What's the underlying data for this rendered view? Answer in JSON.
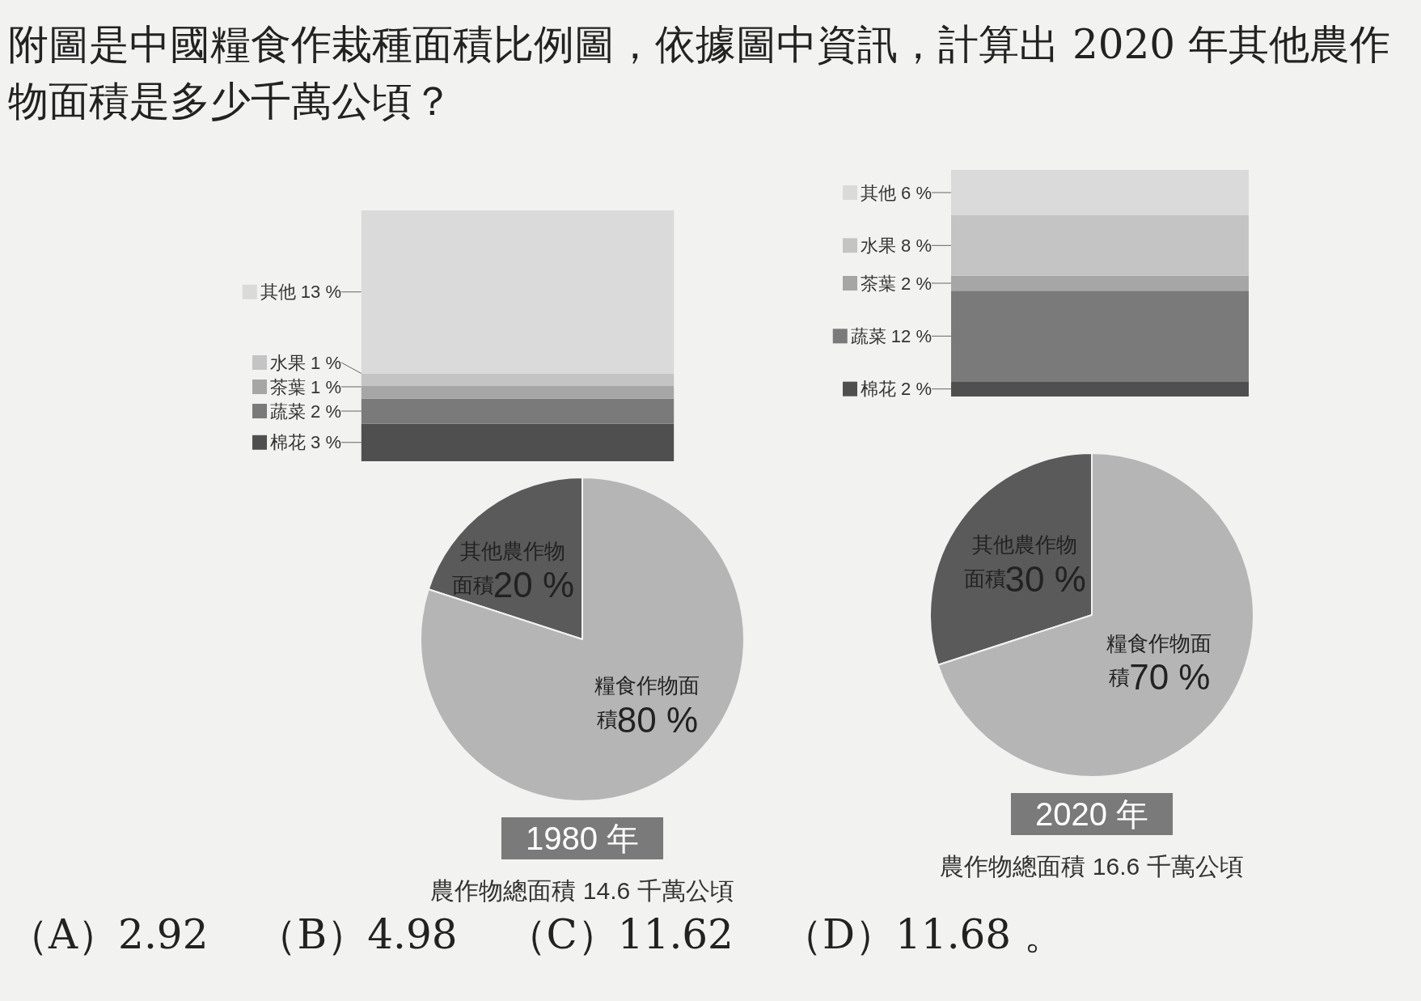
{
  "chart_data": [
    {
      "type": "other",
      "title": "附圖是中國糧食作栽種面積比例圖，依據圖中資訊，計算出 2020 年其他農作物面積是多少千萬公頃？"
    },
    {
      "type": "bar",
      "stacked": true,
      "legend": "left",
      "categories": [
        null
      ],
      "series": [
        {
          "name": "棉花",
          "color": "#4f4f4f",
          "values": [
            3
          ],
          "value_labels": [
            "3 %"
          ]
        },
        {
          "name": "蔬菜",
          "color": "#7a7a7a",
          "values": [
            2
          ],
          "value_labels": [
            "2 %"
          ]
        },
        {
          "name": "茶葉",
          "color": "#a6a6a6",
          "values": [
            1
          ],
          "value_labels": [
            "1 %"
          ]
        },
        {
          "name": "水果",
          "color": "#c4c4c4",
          "values": [
            1
          ],
          "value_labels": [
            "1 %"
          ]
        },
        {
          "name": "其他",
          "color": "#dadada",
          "values": [
            13
          ],
          "value_labels": [
            "13 %"
          ]
        }
      ]
    },
    {
      "type": "pie",
      "title": "1980 年",
      "categories": [
        "其他農作物面積",
        "糧食作物面積"
      ],
      "values": [
        20,
        80
      ],
      "colors": [
        "#5a5a5a",
        "#b5b5b5"
      ],
      "value_labels": [
        "20 %",
        "80 %"
      ],
      "annotations": [
        "農作物總面積 14.6 千萬公頃"
      ]
    },
    {
      "type": "bar",
      "stacked": true,
      "legend": "left",
      "categories": [
        null
      ],
      "series": [
        {
          "name": "棉花",
          "color": "#4f4f4f",
          "values": [
            2
          ],
          "value_labels": [
            "2 %"
          ]
        },
        {
          "name": "蔬菜",
          "color": "#7a7a7a",
          "values": [
            12
          ],
          "value_labels": [
            "12 %"
          ]
        },
        {
          "name": "茶葉",
          "color": "#a6a6a6",
          "values": [
            2
          ],
          "value_labels": [
            "2 %"
          ]
        },
        {
          "name": "水果",
          "color": "#c4c4c4",
          "values": [
            8
          ],
          "value_labels": [
            "8 %"
          ]
        },
        {
          "name": "其他",
          "color": "#dadada",
          "values": [
            6
          ],
          "value_labels": [
            "6 %"
          ]
        }
      ]
    },
    {
      "type": "pie",
      "title": "2020 年",
      "categories": [
        "其他農作物面積",
        "糧食作物面積"
      ],
      "values": [
        30,
        70
      ],
      "colors": [
        "#5a5a5a",
        "#b5b5b5"
      ],
      "value_labels": [
        "30 %",
        "70 %"
      ],
      "annotations": [
        "農作物總面積 16.6 千萬公頃"
      ]
    },
    {
      "type": "other",
      "annotations": [
        "（A）2.92",
        "（B）4.98",
        "（C）11.62",
        "（D）11.68 。"
      ]
    }
  ]
}
